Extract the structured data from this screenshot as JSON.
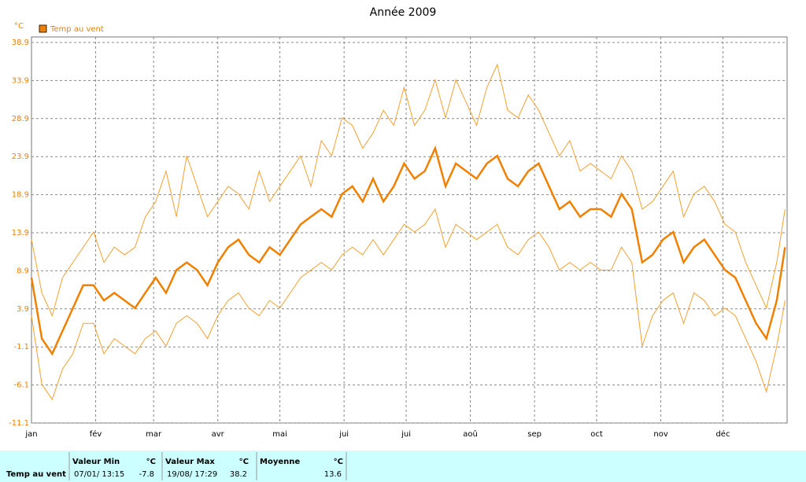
{
  "chart_data": {
    "type": "line",
    "title": "Année 2009",
    "y_unit": "°C",
    "x": [
      1,
      6,
      11,
      16,
      21,
      26,
      31,
      36,
      41,
      46,
      51,
      56,
      61,
      66,
      71,
      76,
      81,
      86,
      91,
      96,
      101,
      106,
      111,
      116,
      121,
      126,
      131,
      136,
      141,
      146,
      151,
      156,
      161,
      166,
      171,
      176,
      181,
      186,
      191,
      196,
      201,
      206,
      211,
      216,
      221,
      226,
      231,
      236,
      241,
      246,
      251,
      256,
      261,
      266,
      271,
      276,
      281,
      286,
      291,
      296,
      301,
      306,
      311,
      316,
      321,
      326,
      331,
      336,
      341,
      346,
      351,
      356,
      361,
      365
    ],
    "xlim": [
      1,
      366
    ],
    "xticks": [
      {
        "value": 1,
        "label": "jan"
      },
      {
        "value": 32,
        "label": "fév"
      },
      {
        "value": 60,
        "label": "mar"
      },
      {
        "value": 91,
        "label": "avr"
      },
      {
        "value": 121,
        "label": "mai"
      },
      {
        "value": 152,
        "label": "jui"
      },
      {
        "value": 182,
        "label": "jui"
      },
      {
        "value": 213,
        "label": "aoû"
      },
      {
        "value": 244,
        "label": "sep"
      },
      {
        "value": 274,
        "label": "oct"
      },
      {
        "value": 305,
        "label": "nov"
      },
      {
        "value": 335,
        "label": "déc"
      }
    ],
    "ylim": [
      -11.1,
      38.9
    ],
    "yticks": [
      -11.1,
      -6.1,
      -1.1,
      3.9,
      8.9,
      13.9,
      18.9,
      23.9,
      28.9,
      33.9,
      38.9
    ],
    "grid": true,
    "series": [
      {
        "name": "Temp au vent",
        "color": "#f08000",
        "values": [
          8,
          0,
          -2,
          1,
          4,
          7,
          7,
          5,
          6,
          5,
          4,
          6,
          8,
          6,
          9,
          10,
          9,
          7,
          10,
          12,
          13,
          11,
          10,
          12,
          11,
          13,
          15,
          16,
          17,
          16,
          19,
          20,
          18,
          21,
          18,
          20,
          23,
          21,
          22,
          25,
          20,
          23,
          22,
          21,
          23,
          24,
          21,
          20,
          22,
          23,
          20,
          17,
          18,
          16,
          17,
          17,
          16,
          19,
          17,
          10,
          11,
          13,
          14,
          10,
          12,
          13,
          11,
          9,
          8,
          5,
          2,
          0,
          5,
          12
        ]
      },
      {
        "color": "#f5a030",
        "values": [
          13,
          6,
          3,
          8,
          10,
          12,
          14,
          10,
          12,
          11,
          12,
          16,
          18,
          22,
          16,
          24,
          20,
          16,
          18,
          20,
          19,
          17,
          22,
          18,
          20,
          22,
          24,
          20,
          26,
          24,
          29,
          28,
          25,
          27,
          30,
          28,
          33,
          28,
          30,
          34,
          29,
          34,
          31,
          28,
          33,
          36,
          30,
          29,
          32,
          30,
          27,
          24,
          26,
          22,
          23,
          22,
          21,
          24,
          22,
          17,
          18,
          20,
          22,
          16,
          19,
          20,
          18,
          15,
          14,
          10,
          7,
          4,
          10,
          17
        ]
      },
      {
        "color": "#f5a030",
        "values": [
          3,
          -6,
          -8,
          -4,
          -2,
          2,
          2,
          -2,
          0,
          -1,
          -2,
          0,
          1,
          -1,
          2,
          3,
          2,
          0,
          3,
          5,
          6,
          4,
          3,
          5,
          4,
          6,
          8,
          9,
          10,
          9,
          11,
          12,
          11,
          13,
          11,
          13,
          15,
          14,
          15,
          17,
          12,
          15,
          14,
          13,
          14,
          15,
          12,
          11,
          13,
          14,
          12,
          9,
          10,
          9,
          10,
          9,
          9,
          12,
          10,
          -1,
          3,
          5,
          6,
          2,
          6,
          5,
          3,
          4,
          3,
          0,
          -3,
          -7,
          -1,
          5
        ]
      }
    ]
  },
  "table": {
    "row": "Temp au vent",
    "columns": [
      [
        "Valeur Min",
        "°C",
        "07/01/ 13:15",
        "-7.8"
      ],
      [
        "Valeur Max",
        "°C",
        "19/08/ 17:29",
        "38.2"
      ],
      [
        "Moyenne",
        "°C",
        "",
        "13.6"
      ]
    ]
  }
}
